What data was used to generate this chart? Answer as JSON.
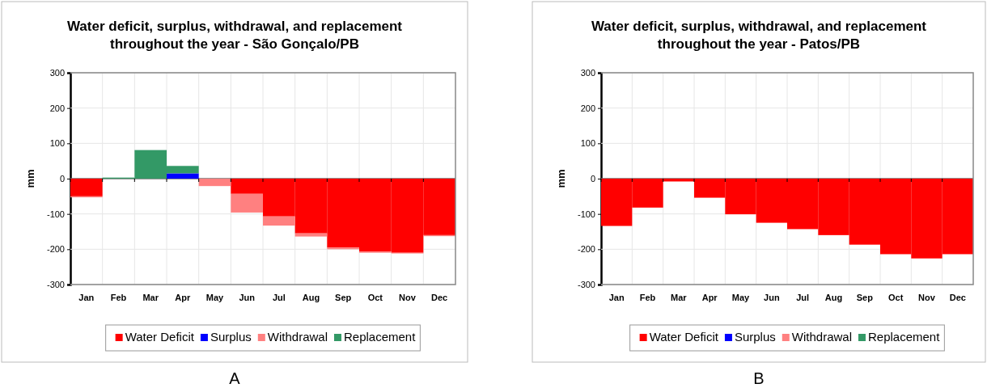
{
  "chart_data": [
    {
      "type": "bar",
      "title": "Water deficit, surplus, withdrawal, and replacement throughout the year - São Gonçalo/PB",
      "ylabel": "mm",
      "categories": [
        "Jan",
        "Feb",
        "Mar",
        "Apr",
        "May",
        "Jun",
        "Jul",
        "Aug",
        "Sep",
        "Oct",
        "Nov",
        "Dec"
      ],
      "stacked": true,
      "series": [
        {
          "name": "Water Deficit",
          "color": "#ff0000",
          "values": [
            -50,
            0,
            0,
            0,
            0,
            -43,
            -107,
            -155,
            -195,
            -206,
            -210,
            -160
          ]
        },
        {
          "name": "Surplus",
          "color": "#0000ff",
          "values": [
            0,
            0,
            0,
            15,
            0,
            0,
            0,
            0,
            0,
            0,
            0,
            0
          ]
        },
        {
          "name": "Withdrawal",
          "color": "#ff8080",
          "values": [
            -3,
            0,
            0,
            0,
            -21,
            -53,
            -26,
            -9,
            -5,
            -4,
            -2,
            -3
          ]
        },
        {
          "name": "Replacement",
          "color": "#339966",
          "values": [
            0,
            3,
            81,
            21,
            0,
            0,
            0,
            0,
            0,
            0,
            0,
            0
          ]
        }
      ],
      "ylim": [
        -300,
        300
      ],
      "yticks": [
        -300,
        -200,
        -100,
        0,
        100,
        200,
        300
      ],
      "grid": true,
      "legend": "bottom",
      "annotations": [
        "A"
      ]
    },
    {
      "type": "bar",
      "title": "Water deficit, surplus, withdrawal, and replacement throughout the year - Patos/PB",
      "ylabel": "mm",
      "categories": [
        "Jan",
        "Feb",
        "Mar",
        "Apr",
        "May",
        "Jun",
        "Jul",
        "Aug",
        "Sep",
        "Oct",
        "Nov",
        "Dec"
      ],
      "stacked": true,
      "series": [
        {
          "name": "Water Deficit",
          "color": "#ff0000",
          "values": [
            -134,
            -82,
            -8,
            -54,
            -101,
            -125,
            -143,
            -160,
            -187,
            -214,
            -226,
            -214
          ]
        },
        {
          "name": "Surplus",
          "color": "#0000ff",
          "values": [
            null,
            null,
            null,
            null,
            null,
            null,
            null,
            null,
            null,
            null,
            null,
            null
          ]
        },
        {
          "name": "Withdrawal",
          "color": "#ff8080",
          "values": [
            null,
            null,
            null,
            null,
            null,
            null,
            null,
            null,
            null,
            null,
            null,
            null
          ]
        },
        {
          "name": "Replacement",
          "color": "#339966",
          "values": [
            null,
            null,
            null,
            null,
            null,
            null,
            null,
            null,
            null,
            null,
            null,
            null
          ]
        }
      ],
      "ylim": [
        -300,
        300
      ],
      "yticks": [
        -300,
        -200,
        -100,
        0,
        100,
        200,
        300
      ],
      "grid": true,
      "legend": "bottom",
      "annotations": [
        "B"
      ]
    }
  ]
}
